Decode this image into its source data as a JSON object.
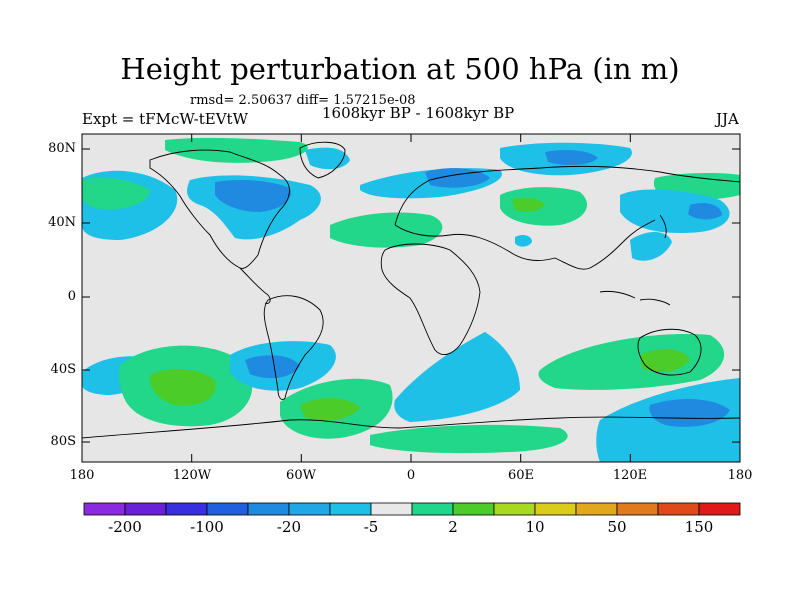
{
  "title": "Height perturbation at 500 hPa (in m)",
  "stats": "rmsd= 2.50637 diff= 1.57215e-08",
  "expt": "Expt = tFMcW-tEVtW",
  "period": "1608kyr BP - 1608kyr BP",
  "season": "JJA",
  "lat_ticks": [
    "80N",
    "40N",
    "0",
    "40S",
    "80S"
  ],
  "lon_ticks": [
    "180",
    "120W",
    "60W",
    "0",
    "60E",
    "120E",
    "180"
  ],
  "colorbar": {
    "labels": [
      "-200",
      "-100",
      "-20",
      "-5",
      "2",
      "10",
      "50",
      "150"
    ],
    "colors": [
      "#8a2be2",
      "#6a1fd9",
      "#3a2fe0",
      "#1f5fe0",
      "#1e8ae0",
      "#1fa7e6",
      "#1ec0e8",
      "#e8e8e8",
      "#1fd68a",
      "#4bcc28",
      "#a8d820",
      "#d9cc1a",
      "#e0a81a",
      "#e07a1a",
      "#e04a1a",
      "#e01a1a"
    ]
  },
  "map_colors": {
    "ocean_land": "#e6e6e6",
    "light_blue": "#1ec0e8",
    "blue": "#1f8ae0",
    "green": "#22d68a",
    "bright_green": "#4bcc28"
  }
}
